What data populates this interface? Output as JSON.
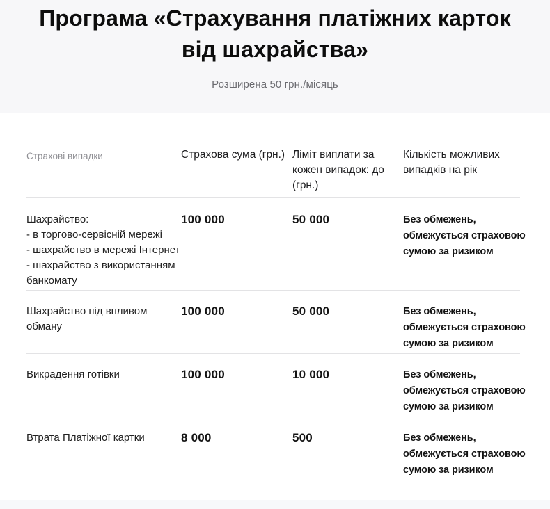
{
  "header": {
    "title_line1": "Програма «Страхування платіжних карток",
    "title_line2": "від шахрайства»",
    "subtitle": "Розширена 50 грн./місяць"
  },
  "table": {
    "columns": {
      "cases": "Страхові випадки",
      "sum": "Страхова сума (грн.)",
      "limit": "Ліміт виплати за\nкожен випадок: до\n(грн.)",
      "count": "Кількість можливих\nвипадків на рік"
    },
    "rows": [
      {
        "case": "Шахрайство:\n- в торгово-сервісній мережі\n- шахрайство в мережі Інтернет\n- шахрайство з використанням\nбанкомату",
        "sum": "100 000",
        "limit": "50 000",
        "count": "Без обмежень,\nобмежується страховою\nсумою за ризиком"
      },
      {
        "case": "Шахрайство під впливом\nобману",
        "sum": "100 000",
        "limit": "50 000",
        "count": "Без обмежень,\nобмежується страховою\nсумою за ризиком"
      },
      {
        "case": "Викрадення готівки",
        "sum": "100 000",
        "limit": "10 000",
        "count": "Без обмежень,\nобмежується страховою\nсумою за ризиком"
      },
      {
        "case": "Втрата Платіжної картки",
        "sum": "8 000",
        "limit": "500",
        "count": "Без обмежень,\nобмежується страховою\nсумою за ризиком"
      }
    ]
  },
  "colors": {
    "hero_background": "#f7f7f9",
    "footer_background": "#f7f8fa",
    "divider": "#e3e3e5",
    "title_text": "#0d0d0d",
    "subtitle_text": "#6b6b70",
    "muted_header_text": "#909095",
    "body_text": "#212121"
  }
}
